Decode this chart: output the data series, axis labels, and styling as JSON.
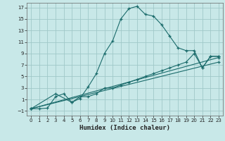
{
  "title": "",
  "xlabel": "Humidex (Indice chaleur)",
  "background_color": "#c8e8e8",
  "grid_color": "#a0c8c8",
  "line_color": "#1a6b6b",
  "xlim": [
    -0.5,
    23.5
  ],
  "ylim": [
    -1.8,
    17.8
  ],
  "xticks": [
    0,
    1,
    2,
    3,
    4,
    5,
    6,
    7,
    8,
    9,
    10,
    11,
    12,
    13,
    14,
    15,
    16,
    17,
    18,
    19,
    20,
    21,
    22,
    23
  ],
  "yticks": [
    -1,
    1,
    3,
    5,
    7,
    9,
    11,
    13,
    15,
    17
  ],
  "curve1_x": [
    0,
    1,
    2,
    3,
    4,
    5,
    6,
    7,
    8,
    9,
    10,
    11,
    12,
    13,
    14,
    15,
    16,
    17,
    18,
    19,
    20,
    21,
    22,
    23
  ],
  "curve1_y": [
    -0.6,
    -0.6,
    -0.5,
    1.5,
    2.0,
    0.5,
    1.2,
    3.2,
    5.5,
    9.0,
    11.2,
    15.0,
    16.8,
    17.2,
    15.8,
    15.5,
    14.0,
    12.0,
    10.0,
    9.5,
    9.5,
    6.5,
    8.5,
    8.5
  ],
  "curve2_x": [
    0,
    23
  ],
  "curve2_y": [
    -0.6,
    8.3
  ],
  "curve3_x": [
    0,
    23
  ],
  "curve3_y": [
    -0.6,
    7.5
  ],
  "curve4_x": [
    0,
    3,
    5,
    6,
    7,
    8,
    9,
    10,
    11,
    12,
    13,
    14,
    15,
    16,
    17,
    18,
    19,
    20,
    21,
    22,
    23
  ],
  "curve4_y": [
    -0.6,
    2.0,
    0.5,
    1.5,
    1.5,
    2.0,
    3.0,
    3.0,
    3.5,
    4.0,
    4.5,
    5.0,
    5.5,
    6.0,
    6.5,
    7.0,
    7.5,
    9.0,
    6.5,
    8.5,
    8.5
  ],
  "tick_fontsize": 5.0,
  "xlabel_fontsize": 6.5
}
